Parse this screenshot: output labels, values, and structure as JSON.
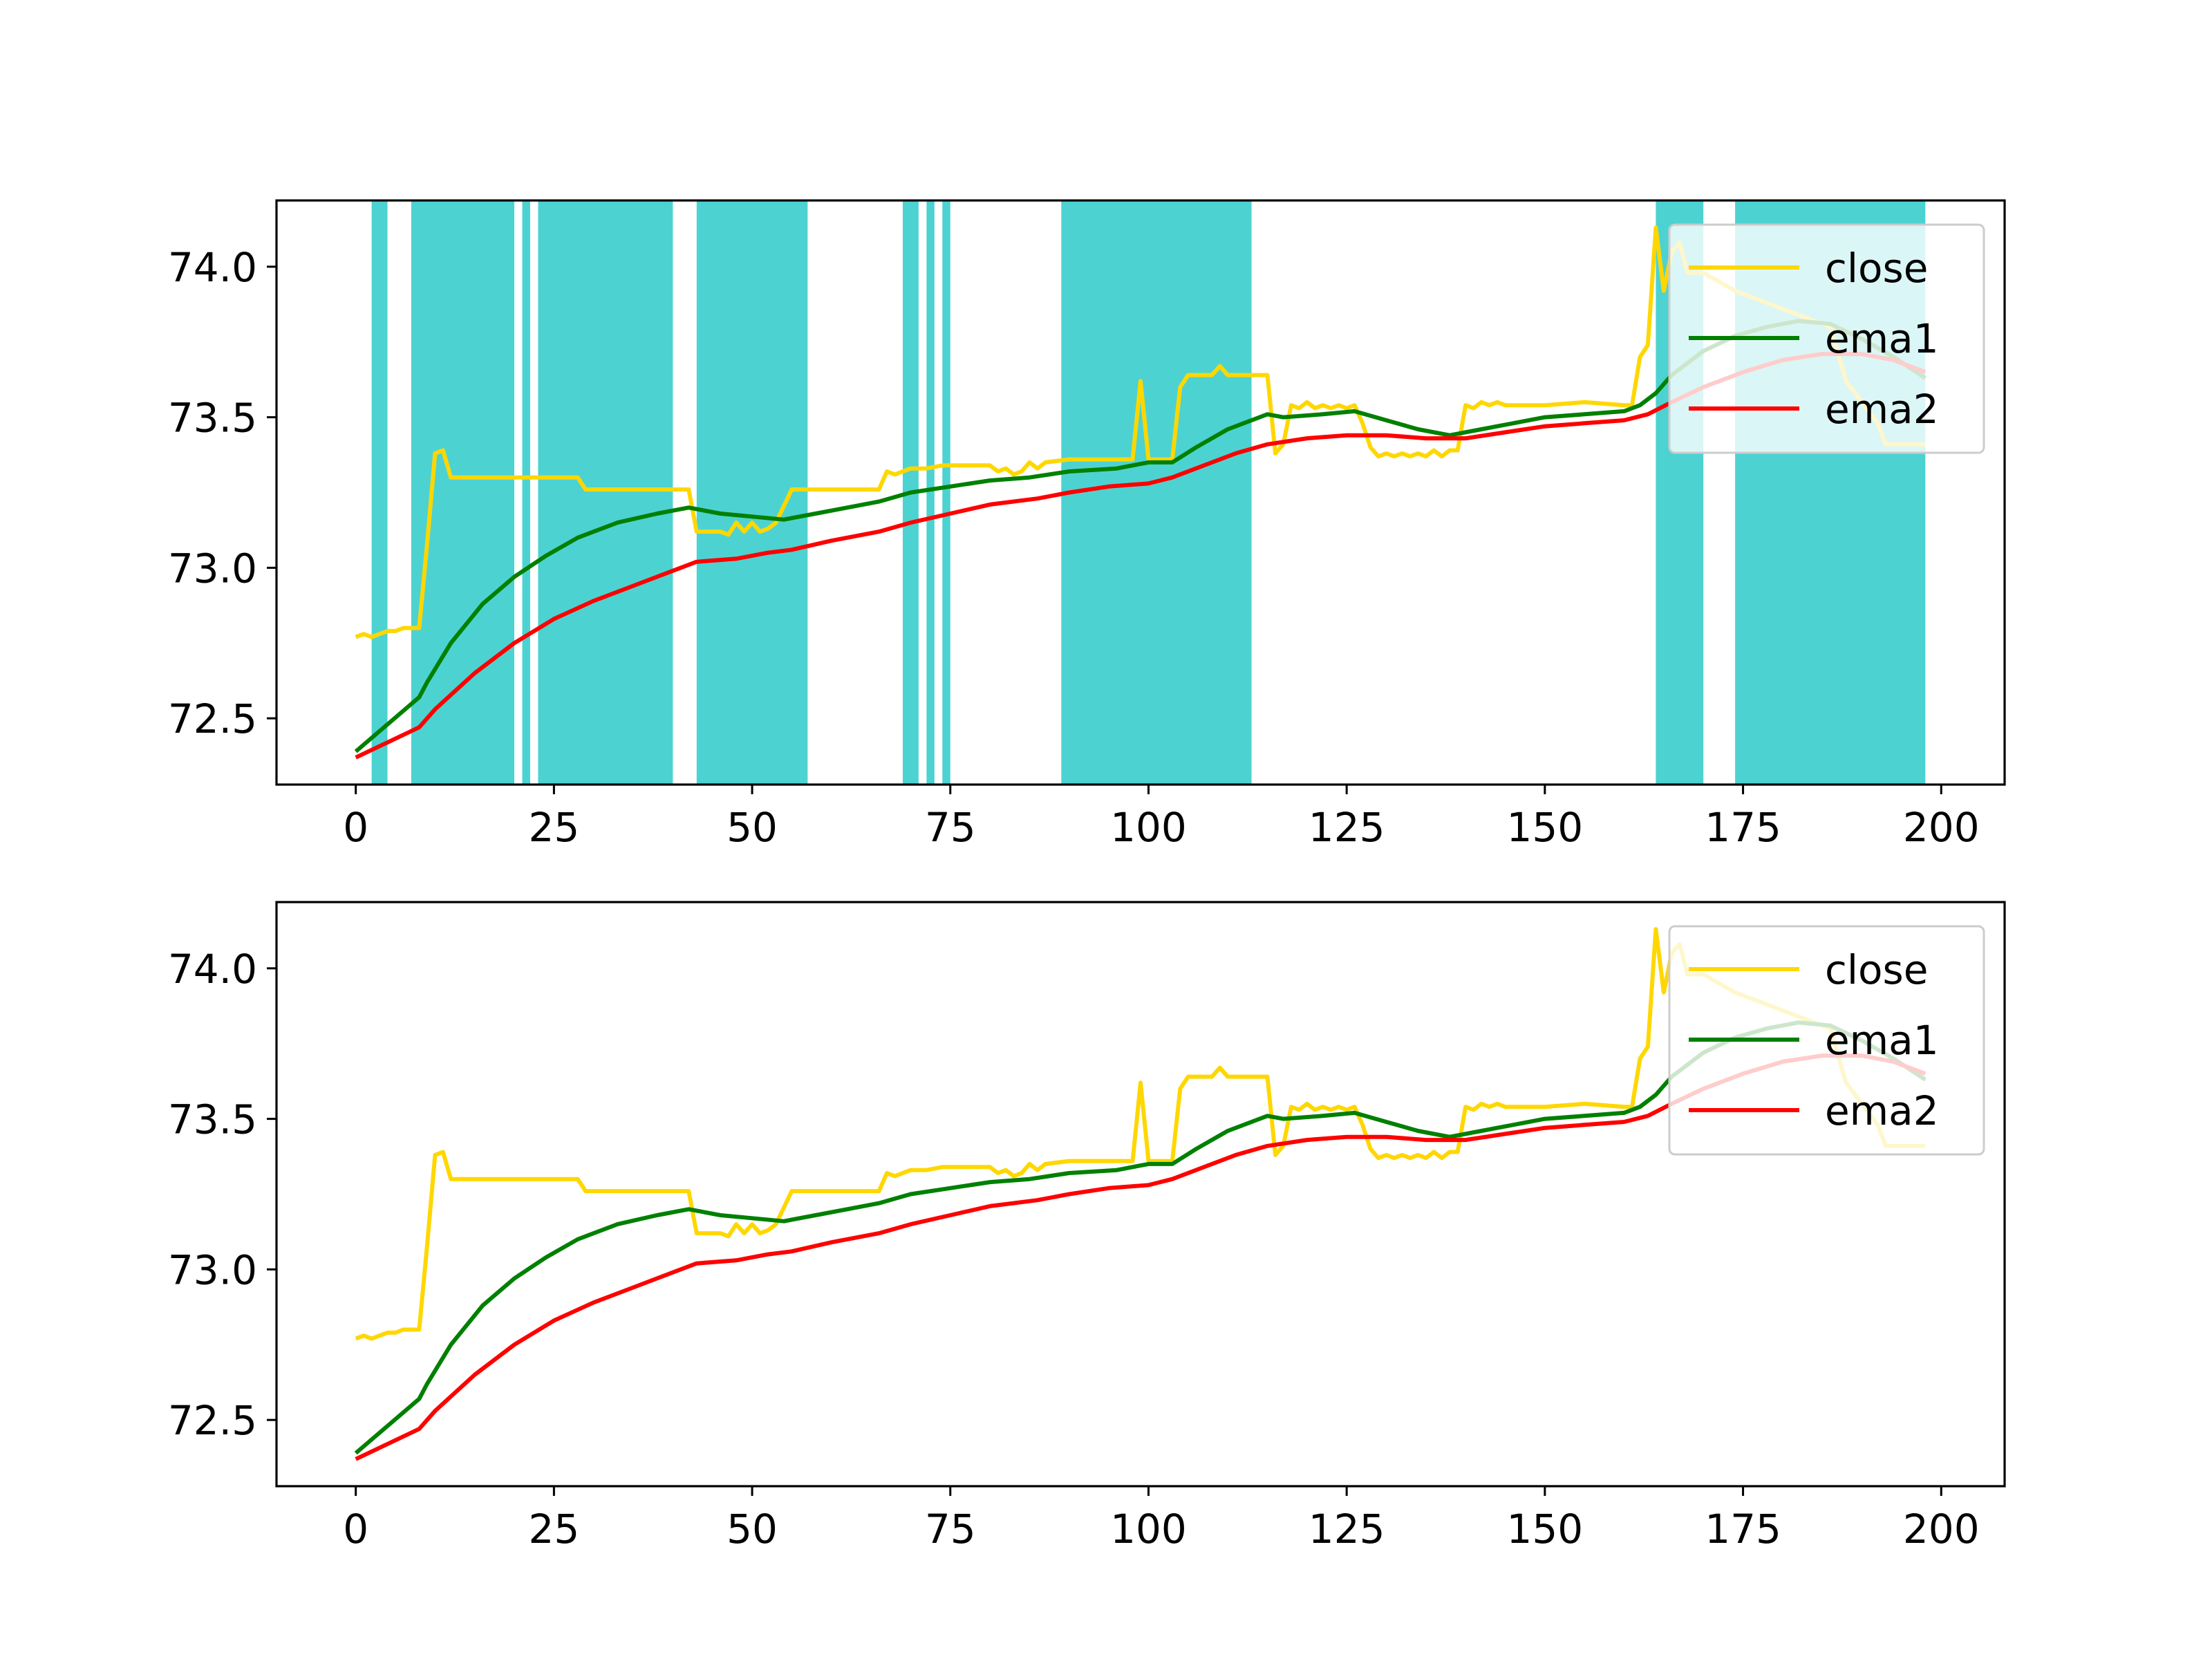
{
  "chart_data": [
    {
      "type": "line",
      "title": "",
      "xlabel": "",
      "ylabel": "",
      "xlim": [
        -10,
        208
      ],
      "ylim": [
        72.28,
        74.22
      ],
      "xticks": [
        0,
        25,
        50,
        75,
        100,
        125,
        150,
        175,
        200
      ],
      "yticks": [
        72.5,
        73.0,
        73.5,
        74.0
      ],
      "legend_position": "upper right",
      "shaded_regions_color": "#4dd2d2",
      "shaded_regions": [
        [
          2,
          4
        ],
        [
          7,
          20
        ],
        [
          21,
          22
        ],
        [
          23,
          40
        ],
        [
          43,
          57
        ],
        [
          69,
          71
        ],
        [
          72,
          73
        ],
        [
          74,
          75
        ],
        [
          89,
          113
        ],
        [
          164,
          170
        ],
        [
          174,
          198
        ]
      ],
      "series": [
        {
          "name": "close",
          "color": "#ffd700"
        },
        {
          "name": "ema1",
          "color": "#008000"
        },
        {
          "name": "ema2",
          "color": "#ff0000"
        }
      ]
    },
    {
      "type": "line",
      "title": "",
      "xlabel": "",
      "ylabel": "",
      "xlim": [
        -10,
        208
      ],
      "ylim": [
        72.28,
        74.22
      ],
      "xticks": [
        0,
        25,
        50,
        75,
        100,
        125,
        150,
        175,
        200
      ],
      "yticks": [
        72.5,
        73.0,
        73.5,
        74.0
      ],
      "legend_position": "upper right",
      "shaded_regions": [],
      "series": [
        {
          "name": "close",
          "color": "#ffd700"
        },
        {
          "name": "ema1",
          "color": "#008000"
        },
        {
          "name": "ema2",
          "color": "#ff0000"
        }
      ]
    }
  ],
  "series_points": {
    "close": [
      [
        0,
        72.77
      ],
      [
        1,
        72.78
      ],
      [
        2,
        72.77
      ],
      [
        3,
        72.78
      ],
      [
        4,
        72.79
      ],
      [
        5,
        72.79
      ],
      [
        6,
        72.8
      ],
      [
        7,
        72.8
      ],
      [
        8,
        72.8
      ],
      [
        9,
        73.08
      ],
      [
        10,
        73.38
      ],
      [
        11,
        73.39
      ],
      [
        12,
        73.3
      ],
      [
        20,
        73.3
      ],
      [
        28,
        73.3
      ],
      [
        29,
        73.26
      ],
      [
        35,
        73.26
      ],
      [
        42,
        73.26
      ],
      [
        43,
        73.12
      ],
      [
        46,
        73.12
      ],
      [
        47,
        73.11
      ],
      [
        48,
        73.15
      ],
      [
        49,
        73.12
      ],
      [
        50,
        73.15
      ],
      [
        51,
        73.12
      ],
      [
        52,
        73.13
      ],
      [
        53,
        73.15
      ],
      [
        55,
        73.26
      ],
      [
        60,
        73.26
      ],
      [
        66,
        73.26
      ],
      [
        67,
        73.32
      ],
      [
        68,
        73.31
      ],
      [
        70,
        73.33
      ],
      [
        72,
        73.33
      ],
      [
        74,
        73.34
      ],
      [
        80,
        73.34
      ],
      [
        81,
        73.32
      ],
      [
        82,
        73.33
      ],
      [
        83,
        73.31
      ],
      [
        84,
        73.32
      ],
      [
        85,
        73.35
      ],
      [
        86,
        73.33
      ],
      [
        87,
        73.35
      ],
      [
        90,
        73.36
      ],
      [
        95,
        73.36
      ],
      [
        98,
        73.36
      ],
      [
        99,
        73.62
      ],
      [
        100,
        73.36
      ],
      [
        103,
        73.36
      ],
      [
        104,
        73.6
      ],
      [
        105,
        73.64
      ],
      [
        108,
        73.64
      ],
      [
        109,
        73.67
      ],
      [
        110,
        73.64
      ],
      [
        115,
        73.64
      ],
      [
        116,
        73.38
      ],
      [
        117,
        73.41
      ],
      [
        118,
        73.54
      ],
      [
        119,
        73.53
      ],
      [
        120,
        73.55
      ],
      [
        121,
        73.53
      ],
      [
        122,
        73.54
      ],
      [
        123,
        73.53
      ],
      [
        124,
        73.54
      ],
      [
        125,
        73.53
      ],
      [
        126,
        73.54
      ],
      [
        127,
        73.48
      ],
      [
        128,
        73.4
      ],
      [
        129,
        73.37
      ],
      [
        130,
        73.38
      ],
      [
        131,
        73.37
      ],
      [
        132,
        73.38
      ],
      [
        133,
        73.37
      ],
      [
        134,
        73.38
      ],
      [
        135,
        73.37
      ],
      [
        136,
        73.39
      ],
      [
        137,
        73.37
      ],
      [
        138,
        73.39
      ],
      [
        139,
        73.39
      ],
      [
        140,
        73.54
      ],
      [
        141,
        73.53
      ],
      [
        142,
        73.55
      ],
      [
        143,
        73.54
      ],
      [
        144,
        73.55
      ],
      [
        145,
        73.54
      ],
      [
        150,
        73.54
      ],
      [
        155,
        73.55
      ],
      [
        160,
        73.54
      ],
      [
        161,
        73.54
      ],
      [
        162,
        73.7
      ],
      [
        163,
        73.74
      ],
      [
        164,
        74.13
      ],
      [
        165,
        73.92
      ],
      [
        166,
        74.05
      ],
      [
        167,
        74.08
      ],
      [
        168,
        73.98
      ],
      [
        170,
        73.98
      ],
      [
        172,
        73.95
      ],
      [
        174,
        73.92
      ],
      [
        176,
        73.9
      ],
      [
        178,
        73.88
      ],
      [
        180,
        73.86
      ],
      [
        182,
        73.84
      ],
      [
        186,
        73.8
      ],
      [
        188,
        73.62
      ],
      [
        190,
        73.55
      ],
      [
        192,
        73.48
      ],
      [
        193,
        73.41
      ],
      [
        198,
        73.41
      ]
    ],
    "ema1": [
      [
        0,
        72.39
      ],
      [
        8,
        72.57
      ],
      [
        9,
        72.62
      ],
      [
        12,
        72.75
      ],
      [
        16,
        72.88
      ],
      [
        20,
        72.97
      ],
      [
        24,
        73.04
      ],
      [
        28,
        73.1
      ],
      [
        33,
        73.15
      ],
      [
        38,
        73.18
      ],
      [
        42,
        73.2
      ],
      [
        46,
        73.18
      ],
      [
        50,
        73.17
      ],
      [
        54,
        73.16
      ],
      [
        58,
        73.18
      ],
      [
        62,
        73.2
      ],
      [
        66,
        73.22
      ],
      [
        70,
        73.25
      ],
      [
        75,
        73.27
      ],
      [
        80,
        73.29
      ],
      [
        85,
        73.3
      ],
      [
        90,
        73.32
      ],
      [
        96,
        73.33
      ],
      [
        100,
        73.35
      ],
      [
        103,
        73.35
      ],
      [
        106,
        73.4
      ],
      [
        110,
        73.46
      ],
      [
        115,
        73.51
      ],
      [
        117,
        73.5
      ],
      [
        122,
        73.51
      ],
      [
        126,
        73.52
      ],
      [
        130,
        73.49
      ],
      [
        134,
        73.46
      ],
      [
        138,
        73.44
      ],
      [
        142,
        73.46
      ],
      [
        146,
        73.48
      ],
      [
        150,
        73.5
      ],
      [
        155,
        73.51
      ],
      [
        160,
        73.52
      ],
      [
        162,
        73.54
      ],
      [
        164,
        73.58
      ],
      [
        166,
        73.64
      ],
      [
        168,
        73.68
      ],
      [
        170,
        73.72
      ],
      [
        174,
        73.77
      ],
      [
        178,
        73.8
      ],
      [
        182,
        73.82
      ],
      [
        186,
        73.81
      ],
      [
        190,
        73.76
      ],
      [
        194,
        73.7
      ],
      [
        198,
        73.63
      ]
    ],
    "ema2": [
      [
        0,
        72.37
      ],
      [
        8,
        72.47
      ],
      [
        10,
        72.53
      ],
      [
        15,
        72.65
      ],
      [
        20,
        72.75
      ],
      [
        25,
        72.83
      ],
      [
        30,
        72.89
      ],
      [
        35,
        72.94
      ],
      [
        40,
        72.99
      ],
      [
        43,
        73.02
      ],
      [
        48,
        73.03
      ],
      [
        52,
        73.05
      ],
      [
        55,
        73.06
      ],
      [
        60,
        73.09
      ],
      [
        66,
        73.12
      ],
      [
        70,
        73.15
      ],
      [
        75,
        73.18
      ],
      [
        80,
        73.21
      ],
      [
        86,
        73.23
      ],
      [
        90,
        73.25
      ],
      [
        95,
        73.27
      ],
      [
        100,
        73.28
      ],
      [
        103,
        73.3
      ],
      [
        107,
        73.34
      ],
      [
        111,
        73.38
      ],
      [
        115,
        73.41
      ],
      [
        120,
        73.43
      ],
      [
        125,
        73.44
      ],
      [
        130,
        73.44
      ],
      [
        135,
        73.43
      ],
      [
        140,
        73.43
      ],
      [
        145,
        73.45
      ],
      [
        150,
        73.47
      ],
      [
        155,
        73.48
      ],
      [
        160,
        73.49
      ],
      [
        163,
        73.51
      ],
      [
        166,
        73.55
      ],
      [
        170,
        73.6
      ],
      [
        175,
        73.65
      ],
      [
        180,
        73.69
      ],
      [
        185,
        73.71
      ],
      [
        190,
        73.71
      ],
      [
        194,
        73.69
      ],
      [
        198,
        73.65
      ]
    ]
  }
}
